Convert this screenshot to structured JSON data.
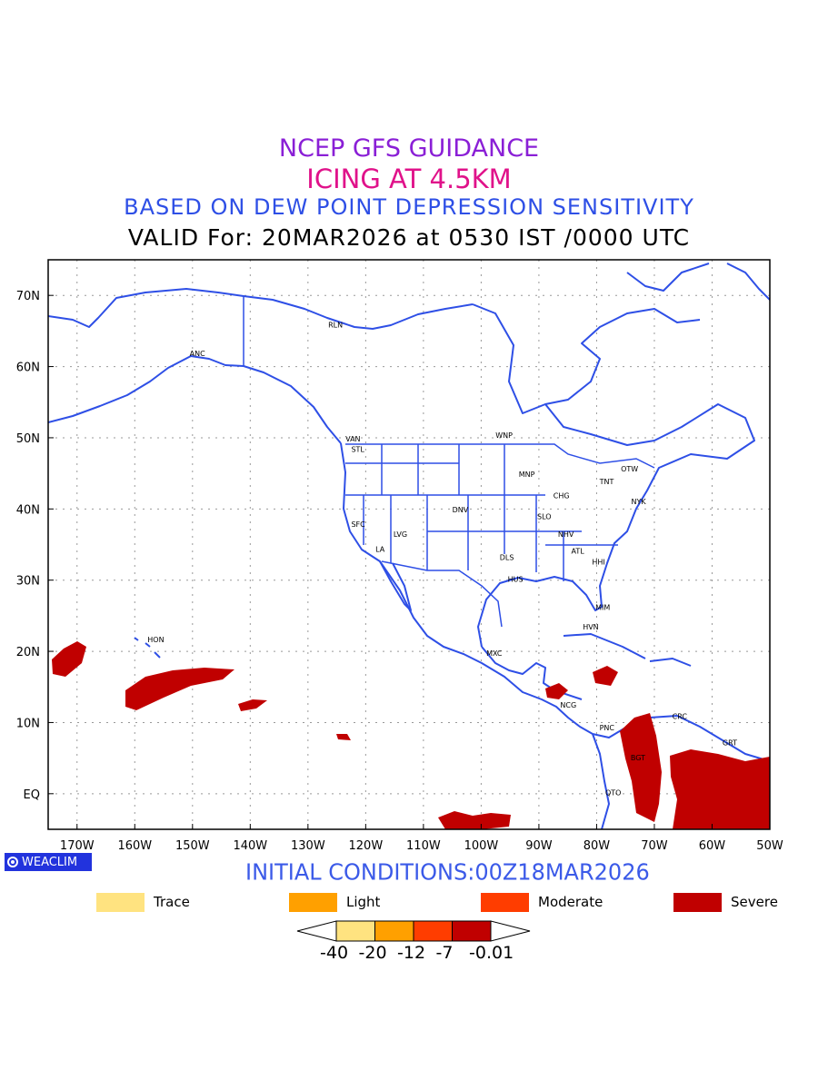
{
  "titles": {
    "line1": {
      "text": "NCEP GFS GUIDANCE",
      "color": "#8a1fd6"
    },
    "line2": {
      "text": "ICING AT 4.5KM",
      "color": "#e0128a"
    },
    "line3": {
      "text": "BASED ON DEW POINT DEPRESSION SENSITIVITY",
      "color": "#2e4fe6"
    },
    "line4": {
      "text": "VALID For: 20MAR2026 at 0530 IST /0000 UTC",
      "color": "#000000"
    }
  },
  "map": {
    "lon_range": [
      -175,
      -50
    ],
    "lat_range": [
      -5,
      75
    ],
    "lon_ticks": [
      "170W",
      "160W",
      "150W",
      "140W",
      "130W",
      "120W",
      "110W",
      "100W",
      "90W",
      "80W",
      "70W",
      "60W",
      "50W"
    ],
    "lat_ticks": [
      "EQ",
      "10N",
      "20N",
      "30N",
      "40N",
      "50N",
      "60N",
      "70N"
    ],
    "coast_color": "#2e4fe6",
    "grid": true,
    "stations": [
      {
        "id": "ANC",
        "lon": -150.5,
        "lat": 61.5
      },
      {
        "id": "RLN",
        "lon": -126.5,
        "lat": 65.5
      },
      {
        "id": "VAN",
        "lon": -123.5,
        "lat": 49.5
      },
      {
        "id": "STL",
        "lon": -122.5,
        "lat": 48.0
      },
      {
        "id": "WNP",
        "lon": -97.5,
        "lat": 50.0
      },
      {
        "id": "MNP",
        "lon": -93.5,
        "lat": 44.5
      },
      {
        "id": "CHG",
        "lon": -87.5,
        "lat": 41.5
      },
      {
        "id": "TNT",
        "lon": -79.5,
        "lat": 43.5
      },
      {
        "id": "OTW",
        "lon": -75.8,
        "lat": 45.3
      },
      {
        "id": "NYK",
        "lon": -74.0,
        "lat": 40.7
      },
      {
        "id": "DNV",
        "lon": -105.0,
        "lat": 39.5
      },
      {
        "id": "SFC",
        "lon": -122.5,
        "lat": 37.5
      },
      {
        "id": "LVG",
        "lon": -115.2,
        "lat": 36.1
      },
      {
        "id": "LA",
        "lon": -118.3,
        "lat": 34.0
      },
      {
        "id": "SLO",
        "lon": -90.3,
        "lat": 38.6
      },
      {
        "id": "NHV",
        "lon": -86.7,
        "lat": 36.1
      },
      {
        "id": "ATL",
        "lon": -84.4,
        "lat": 33.7
      },
      {
        "id": "HHI",
        "lon": -80.8,
        "lat": 32.2
      },
      {
        "id": "DLS",
        "lon": -96.8,
        "lat": 32.8
      },
      {
        "id": "HUS",
        "lon": -95.4,
        "lat": 29.8
      },
      {
        "id": "MIM",
        "lon": -80.2,
        "lat": 25.8
      },
      {
        "id": "HVN",
        "lon": -82.4,
        "lat": 23.1
      },
      {
        "id": "MXC",
        "lon": -99.1,
        "lat": 19.4
      },
      {
        "id": "HON",
        "lon": -157.8,
        "lat": 21.3
      },
      {
        "id": "NCG",
        "lon": -86.3,
        "lat": 12.1
      },
      {
        "id": "PNC",
        "lon": -79.5,
        "lat": 8.9
      },
      {
        "id": "CRC",
        "lon": -66.9,
        "lat": 10.5
      },
      {
        "id": "BGT",
        "lon": -74.1,
        "lat": 4.7
      },
      {
        "id": "GRT",
        "lon": -58.2,
        "lat": 6.8
      },
      {
        "id": "QTO",
        "lon": -78.5,
        "lat": -0.2
      }
    ]
  },
  "initial_conditions": {
    "text": "INITIAL CONDITIONS:00Z18MAR2026",
    "color": "#3b5ae8"
  },
  "logo": {
    "text": "WEACLIM",
    "background": "#2233dd"
  },
  "legend": [
    {
      "label": "Trace",
      "color": "#ffe380"
    },
    {
      "label": "Light",
      "color": "#ffa000"
    },
    {
      "label": "Moderate",
      "color": "#ff3d00"
    },
    {
      "label": "Severe",
      "color": "#c00000"
    }
  ],
  "colorbar": {
    "labels": [
      "-40",
      "-20",
      "-12",
      "-7",
      "-0.01"
    ],
    "colors": [
      "#ffe380",
      "#ffa000",
      "#ff3d00",
      "#c00000"
    ]
  }
}
